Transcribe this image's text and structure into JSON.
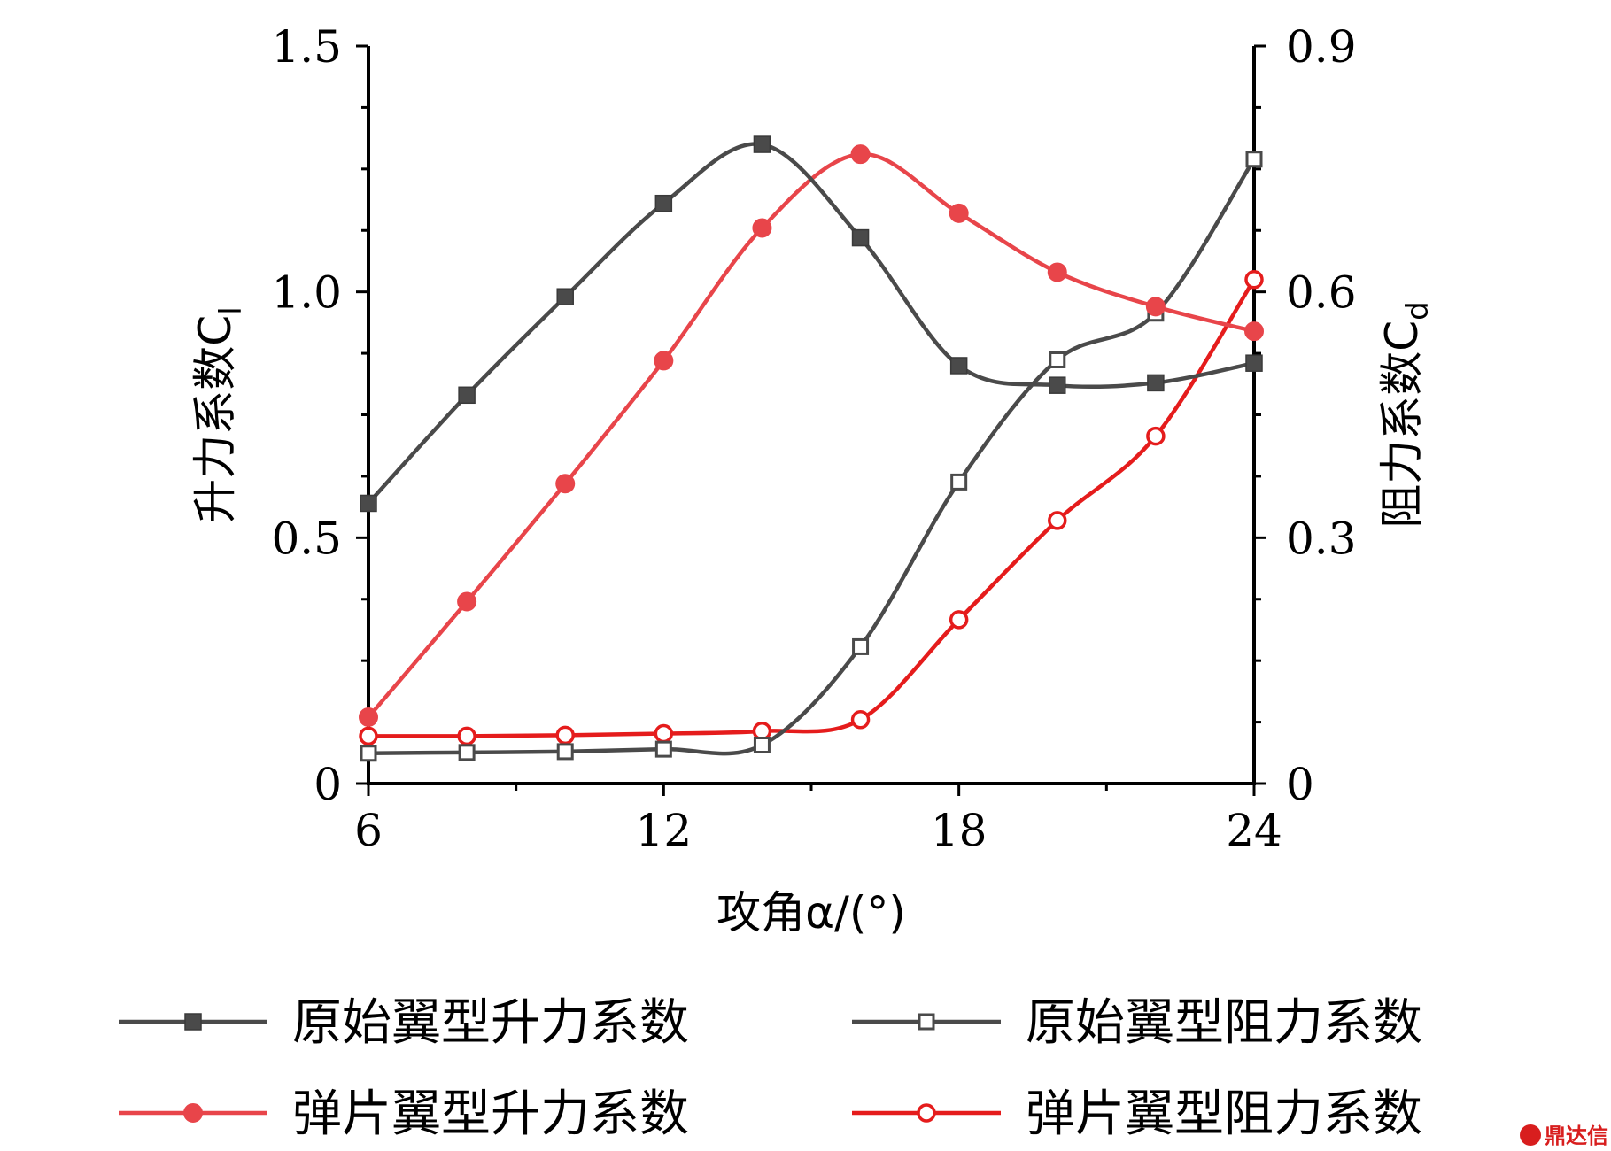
{
  "chart_data": {
    "type": "line",
    "xlabel": "攻角α/(°)",
    "ylabel_left": "升力系数C",
    "ylabel_left_sub": "l",
    "ylabel_right": "阻力系数C",
    "ylabel_right_sub": "d",
    "xlim": [
      6,
      24
    ],
    "ylim_left": [
      0,
      1.5
    ],
    "ylim_right": [
      0,
      0.9
    ],
    "x_ticks": [
      "6",
      "12",
      "18",
      "24"
    ],
    "y_left_ticks": [
      "0",
      "0.5",
      "1.0",
      "1.5"
    ],
    "y_right_ticks": [
      "0",
      "0.3",
      "0.6",
      "0.9"
    ],
    "grid": false,
    "legend_position": "bottom",
    "x": [
      6,
      8,
      10,
      12,
      14,
      16,
      18,
      20,
      22,
      24
    ],
    "series": [
      {
        "name": "原始翼型升力系数",
        "axis": "left",
        "color": "#4a4a4a",
        "marker": "square-filled",
        "values": [
          0.57,
          0.79,
          0.99,
          1.18,
          1.3,
          1.11,
          0.85,
          0.81,
          0.815,
          0.855
        ]
      },
      {
        "name": "原始翼型阻力系数",
        "axis": "right",
        "color": "#4a4a4a",
        "marker": "square-open",
        "values": [
          0.037,
          0.038,
          0.039,
          0.042,
          0.047,
          0.167,
          0.368,
          0.517,
          0.574,
          0.762
        ]
      },
      {
        "name": "弹片翼型升力系数",
        "axis": "left",
        "color": "#e8454a",
        "marker": "circle-filled",
        "values": [
          0.135,
          0.37,
          0.61,
          0.86,
          1.13,
          1.28,
          1.16,
          1.04,
          0.97,
          0.92
        ]
      },
      {
        "name": "弹片翼型阻力系数",
        "axis": "right",
        "color": "#e51c1c",
        "marker": "circle-open",
        "values": [
          0.058,
          0.058,
          0.059,
          0.061,
          0.064,
          0.078,
          0.2,
          0.321,
          0.424,
          0.615
        ]
      }
    ]
  },
  "watermark": {
    "text": "鼎达信",
    "color": "#d81e1e"
  }
}
